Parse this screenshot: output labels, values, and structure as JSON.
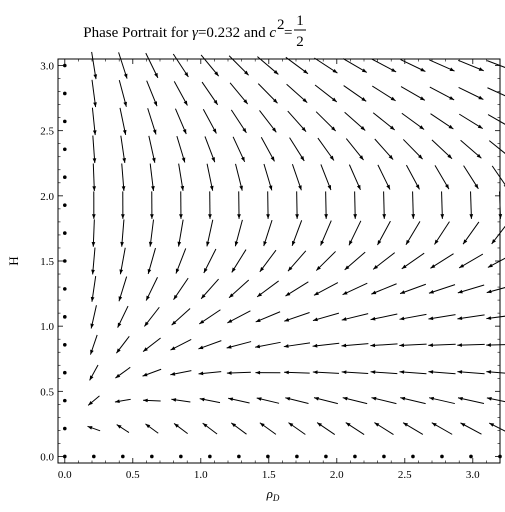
{
  "chart_data": {
    "type": "vector_field",
    "title": {
      "prefix": "Phase Portrait for ",
      "gamma_symbol": "γ",
      "gamma_value": "=0.232 and ",
      "c_symbol": "c",
      "c_exponent": "2",
      "equals": "=",
      "fraction_numerator": "1",
      "fraction_denominator": "2"
    },
    "xlabel": {
      "base": "ρ",
      "subscript": "D"
    },
    "ylabel": "H",
    "xlim": [
      -0.05,
      3.2
    ],
    "ylim": [
      -0.05,
      3.05
    ],
    "x_ticks": [
      {
        "value": 0.0,
        "label": "0.0"
      },
      {
        "value": 0.5,
        "label": "0.5"
      },
      {
        "value": 1.0,
        "label": "1.0"
      },
      {
        "value": 1.5,
        "label": "1.5"
      },
      {
        "value": 2.0,
        "label": "2.0"
      },
      {
        "value": 2.5,
        "label": "2.5"
      },
      {
        "value": 3.0,
        "label": "3.0"
      }
    ],
    "y_ticks": [
      {
        "value": 0.0,
        "label": "0.0"
      },
      {
        "value": 0.5,
        "label": "0.5"
      },
      {
        "value": 1.0,
        "label": "1.0"
      },
      {
        "value": 1.5,
        "label": "1.5"
      },
      {
        "value": 2.0,
        "label": "2.0"
      },
      {
        "value": 2.5,
        "label": "2.5"
      },
      {
        "value": 3.0,
        "label": "3.0"
      }
    ],
    "grid": false,
    "field": {
      "x_range": [
        0,
        3.2
      ],
      "y_range": [
        0,
        3.0
      ],
      "n_x": 16,
      "n_y": 15,
      "gamma": 0.232,
      "c_squared": 0.5
    },
    "colors": {
      "arrows": "#000000",
      "frame": "#000000",
      "background": "#ffffff"
    }
  }
}
